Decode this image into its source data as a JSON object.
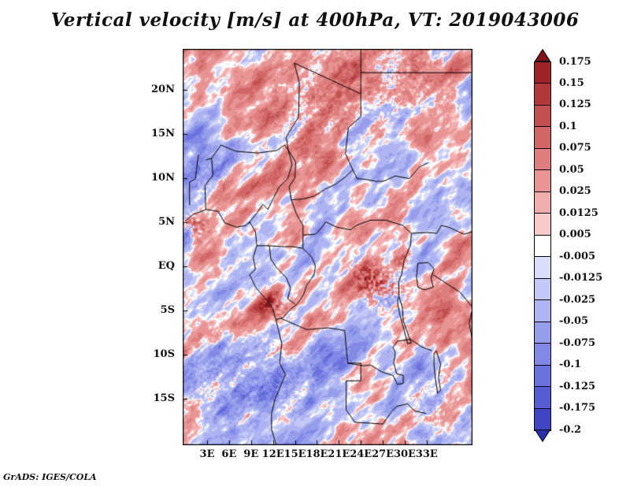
{
  "footer": {
    "credit": "GrADS: IGES/COLA"
  },
  "chart_data": {
    "type": "heatmap",
    "title": "Vertical velocity [m/s] at 400hPa, VT: 2019043006",
    "variable": "Vertical velocity",
    "units": "m/s",
    "level": "400hPa",
    "valid_time": "2019043006",
    "x_ticks": [
      "3E",
      "6E",
      "9E",
      "12E",
      "15E",
      "18E",
      "21E",
      "24E",
      "27E",
      "30E",
      "33E"
    ],
    "y_ticks": [
      "20N",
      "15N",
      "10N",
      "5N",
      "EQ",
      "5S",
      "10S",
      "15S"
    ],
    "lon_range": [
      -0.34,
      39.26
    ],
    "lat_range": [
      -20.3,
      24.6
    ],
    "colorbar": {
      "labels": [
        "0.175",
        "0.15",
        "0.125",
        "0.1",
        "0.075",
        "0.05",
        "0.025",
        "0.0125",
        "0.005",
        "-0.005",
        "-0.0125",
        "-0.025",
        "-0.05",
        "-0.075",
        "-0.1",
        "-0.125",
        "-0.175",
        "-0.2"
      ],
      "levels": [
        0.175,
        0.15,
        0.125,
        0.1,
        0.075,
        0.05,
        0.025,
        0.0125,
        0.005,
        -0.005,
        -0.0125,
        -0.025,
        -0.05,
        -0.075,
        -0.1,
        -0.125,
        -0.175,
        -0.2
      ],
      "colors": [
        "#7f1518",
        "#9e2428",
        "#b03a3a",
        "#c15050",
        "#d06666",
        "#dd7d7d",
        "#e89494",
        "#f1adad",
        "#f9caca",
        "#ffffff",
        "#dadef9",
        "#c3c9f6",
        "#adb4f1",
        "#969eec",
        "#8188e6",
        "#6b72de",
        "#565cd2",
        "#4046c4",
        "#2a2fae"
      ]
    },
    "field": {
      "seed": 20190430,
      "base_amplitude": 0.16,
      "value_range": [
        -0.2,
        0.175
      ],
      "hotspots": [
        {
          "lon": 1.3,
          "lat": 4.6,
          "r": 1.8,
          "amp": 0.17
        },
        {
          "lon": 12.0,
          "lat": -4.3,
          "r": 1.8,
          "amp": 0.15
        },
        {
          "lon": 24.8,
          "lat": -1.2,
          "r": 2.0,
          "amp": 0.14
        },
        {
          "lon": 27.2,
          "lat": -2.6,
          "r": 2.4,
          "amp": 0.17
        },
        {
          "lon": 29.5,
          "lat": 0.8,
          "r": 1.2,
          "amp": 0.12
        },
        {
          "lon": 18.0,
          "lat": 19.0,
          "r": 9.0,
          "amp": 0.05
        },
        {
          "lon": 31.0,
          "lat": 21.5,
          "r": 6.0,
          "amp": 0.055
        },
        {
          "lon": 5.5,
          "lat": -13.0,
          "r": 8.0,
          "amp": -0.05
        },
        {
          "lon": 16.0,
          "lat": -12.5,
          "r": 6.0,
          "amp": -0.035
        },
        {
          "lon": 3.0,
          "lat": 10.0,
          "r": 4.0,
          "amp": -0.045
        },
        {
          "lon": 34.0,
          "lat": -16.0,
          "r": 5.0,
          "amp": -0.04
        }
      ]
    },
    "map_outlines": [
      [
        [
          0,
          5.1
        ],
        [
          1.2,
          5.9
        ],
        [
          2.9,
          6.4
        ],
        [
          4.5,
          6.2
        ],
        [
          5.4,
          4.9
        ],
        [
          7.0,
          4.4
        ],
        [
          8.3,
          4.6
        ],
        [
          8.8,
          5.0
        ],
        [
          9.6,
          3.9
        ],
        [
          9.8,
          2.3
        ],
        [
          9.3,
          1.0
        ],
        [
          9.6,
          -0.4
        ],
        [
          8.8,
          -1.0
        ],
        [
          9.7,
          -2.5
        ],
        [
          11.2,
          -3.9
        ],
        [
          11.9,
          -4.7
        ],
        [
          12.4,
          -6.1
        ],
        [
          13.2,
          -8.8
        ],
        [
          12.9,
          -11.0
        ],
        [
          13.7,
          -12.3
        ],
        [
          12.3,
          -15.0
        ],
        [
          11.8,
          -16.7
        ],
        [
          11.8,
          -18.5
        ],
        [
          12.5,
          -20.4
        ]
      ],
      [
        [
          39.3,
          -4.7
        ],
        [
          38.8,
          -6.5
        ],
        [
          39.4,
          -8.9
        ],
        [
          39.3,
          -11.2
        ],
        [
          40.0,
          -12.8
        ]
      ],
      [
        [
          31.8,
          0.3
        ],
        [
          33.2,
          0.4
        ],
        [
          34.0,
          -0.3
        ],
        [
          33.6,
          -1.4
        ],
        [
          33.9,
          -2.4
        ],
        [
          32.7,
          -2.7
        ],
        [
          31.8,
          -2.4
        ],
        [
          31.6,
          -1.1
        ],
        [
          31.8,
          0.3
        ]
      ],
      [
        [
          29.2,
          -3.4
        ],
        [
          29.7,
          -4.8
        ],
        [
          29.8,
          -6.2
        ],
        [
          30.4,
          -7.6
        ],
        [
          30.9,
          -8.7
        ],
        [
          30.4,
          -8.8
        ],
        [
          29.9,
          -7.2
        ],
        [
          29.3,
          -5.4
        ],
        [
          29.0,
          -4.0
        ],
        [
          29.2,
          -3.4
        ]
      ],
      [
        [
          34.3,
          -9.6
        ],
        [
          34.9,
          -11.1
        ],
        [
          34.6,
          -12.6
        ],
        [
          34.9,
          -14.1
        ],
        [
          34.5,
          -14.4
        ],
        [
          34.2,
          -12.8
        ],
        [
          34.0,
          -11.2
        ],
        [
          34.0,
          -9.9
        ],
        [
          34.3,
          -9.6
        ]
      ],
      [
        [
          2.8,
          12.0
        ],
        [
          3.6,
          12.2
        ],
        [
          4.9,
          13.7
        ],
        [
          6.9,
          13.0
        ],
        [
          9.9,
          12.8
        ],
        [
          12.5,
          13.1
        ],
        [
          13.6,
          13.7
        ],
        [
          14.1,
          13.1
        ]
      ],
      [
        [
          8.6,
          4.8
        ],
        [
          9.8,
          6.0
        ],
        [
          10.6,
          7.0
        ],
        [
          11.3,
          6.4
        ],
        [
          12.0,
          7.6
        ],
        [
          12.8,
          8.9
        ],
        [
          14.0,
          9.9
        ],
        [
          14.6,
          11.5
        ],
        [
          14.1,
          13.1
        ]
      ],
      [
        [
          14.9,
          23.0
        ],
        [
          15.6,
          20.8
        ],
        [
          15.5,
          16.9
        ],
        [
          13.8,
          14.6
        ],
        [
          14.1,
          13.1
        ]
      ],
      [
        [
          14.9,
          23.0
        ],
        [
          24.0,
          19.5
        ]
      ],
      [
        [
          24.0,
          24.6
        ],
        [
          24.0,
          16.9
        ],
        [
          22.3,
          15.7
        ],
        [
          21.9,
          12.7
        ],
        [
          22.9,
          10.9
        ]
      ],
      [
        [
          24.0,
          21.9
        ],
        [
          39.3,
          21.9
        ]
      ],
      [
        [
          14.1,
          13.1
        ],
        [
          15.1,
          11.8
        ],
        [
          15.0,
          10.0
        ],
        [
          14.2,
          9.0
        ],
        [
          14.5,
          7.5
        ],
        [
          16.1,
          7.6
        ],
        [
          17.6,
          7.9
        ],
        [
          19.1,
          8.7
        ],
        [
          20.6,
          9.3
        ],
        [
          21.9,
          10.1
        ],
        [
          22.9,
          10.9
        ]
      ],
      [
        [
          22.9,
          10.9
        ],
        [
          23.5,
          9.9
        ],
        [
          24.8,
          9.8
        ],
        [
          26.1,
          9.6
        ],
        [
          27.1,
          9.6
        ],
        [
          28.7,
          10.2
        ],
        [
          30.6,
          9.9
        ],
        [
          32.0,
          11.2
        ],
        [
          33.2,
          11.7
        ]
      ],
      [
        [
          16.1,
          3.5
        ],
        [
          17.8,
          3.6
        ],
        [
          18.6,
          4.3
        ],
        [
          19.2,
          5.0
        ],
        [
          20.7,
          4.4
        ],
        [
          22.6,
          4.1
        ],
        [
          23.4,
          4.6
        ],
        [
          25.3,
          5.2
        ],
        [
          27.4,
          5.2
        ]
      ],
      [
        [
          14.5,
          7.5
        ],
        [
          15.2,
          5.9
        ],
        [
          16.1,
          4.6
        ],
        [
          16.1,
          3.5
        ]
      ],
      [
        [
          27.4,
          5.2
        ],
        [
          29.7,
          4.6
        ],
        [
          30.9,
          3.7
        ],
        [
          30.8,
          2.4
        ],
        [
          29.9,
          0.6
        ],
        [
          29.6,
          -0.9
        ],
        [
          29.2,
          -1.7
        ],
        [
          29.2,
          -3.4
        ]
      ],
      [
        [
          30.9,
          3.7
        ],
        [
          33.0,
          3.8
        ],
        [
          34.4,
          3.7
        ],
        [
          35.0,
          4.6
        ],
        [
          36.0,
          4.4
        ],
        [
          38.1,
          3.6
        ],
        [
          39.3,
          3.9
        ]
      ],
      [
        [
          9.8,
          2.3
        ],
        [
          11.4,
          2.3
        ],
        [
          13.3,
          2.2
        ],
        [
          14.6,
          2.2
        ],
        [
          16.1,
          2.0
        ],
        [
          16.1,
          3.5
        ]
      ],
      [
        [
          11.5,
          2.3
        ],
        [
          11.7,
          0.8
        ],
        [
          12.5,
          -0.2
        ],
        [
          13.8,
          -1.3
        ],
        [
          14.4,
          -2.5
        ],
        [
          14.0,
          -3.7
        ],
        [
          15.0,
          -4.3
        ]
      ],
      [
        [
          16.1,
          2.0
        ],
        [
          17.3,
          1.0
        ],
        [
          17.8,
          0.0
        ],
        [
          17.6,
          -1.0
        ],
        [
          16.6,
          -2.2
        ],
        [
          16.2,
          -3.2
        ],
        [
          15.3,
          -4.3
        ],
        [
          14.4,
          -4.9
        ],
        [
          13.4,
          -5.8
        ],
        [
          12.4,
          -6.1
        ]
      ],
      [
        [
          13.0,
          -5.9
        ],
        [
          16.6,
          -7.2
        ],
        [
          19.6,
          -7.0
        ],
        [
          21.8,
          -7.3
        ],
        [
          22.2,
          -11.0
        ],
        [
          24.0,
          -11.0
        ],
        [
          24.0,
          -13.0
        ]
      ],
      [
        [
          24.0,
          -13.0
        ],
        [
          22.0,
          -13.0
        ],
        [
          22.0,
          -16.3
        ],
        [
          23.2,
          -17.7
        ],
        [
          25.3,
          -17.8
        ],
        [
          27.0,
          -17.9
        ],
        [
          28.2,
          -16.5
        ],
        [
          28.9,
          -15.9
        ],
        [
          30.4,
          -15.6
        ],
        [
          31.3,
          -16.4
        ],
        [
          32.9,
          -16.7
        ]
      ],
      [
        [
          22.2,
          -11.0
        ],
        [
          24.4,
          -11.3
        ],
        [
          25.3,
          -11.2
        ],
        [
          26.9,
          -12.0
        ],
        [
          28.4,
          -12.4
        ],
        [
          29.0,
          -13.4
        ],
        [
          29.8,
          -13.3
        ],
        [
          29.8,
          -12.4
        ],
        [
          28.9,
          -12.2
        ],
        [
          28.5,
          -11.0
        ],
        [
          28.7,
          -9.8
        ],
        [
          28.4,
          -9.2
        ],
        [
          29.0,
          -8.5
        ],
        [
          30.8,
          -8.3
        ],
        [
          32.2,
          -9.1
        ],
        [
          33.7,
          -9.6
        ]
      ],
      [
        [
          33.9,
          -1.0
        ],
        [
          37.6,
          -3.0
        ],
        [
          39.3,
          -4.7
        ]
      ],
      [
        [
          0.6,
          6.9
        ],
        [
          0.6,
          9.5
        ],
        [
          1.4,
          9.9
        ],
        [
          1.8,
          12.6
        ]
      ],
      [
        [
          2.8,
          6.4
        ],
        [
          2.7,
          9.1
        ],
        [
          3.8,
          10.3
        ],
        [
          3.6,
          12.2
        ]
      ]
    ]
  }
}
